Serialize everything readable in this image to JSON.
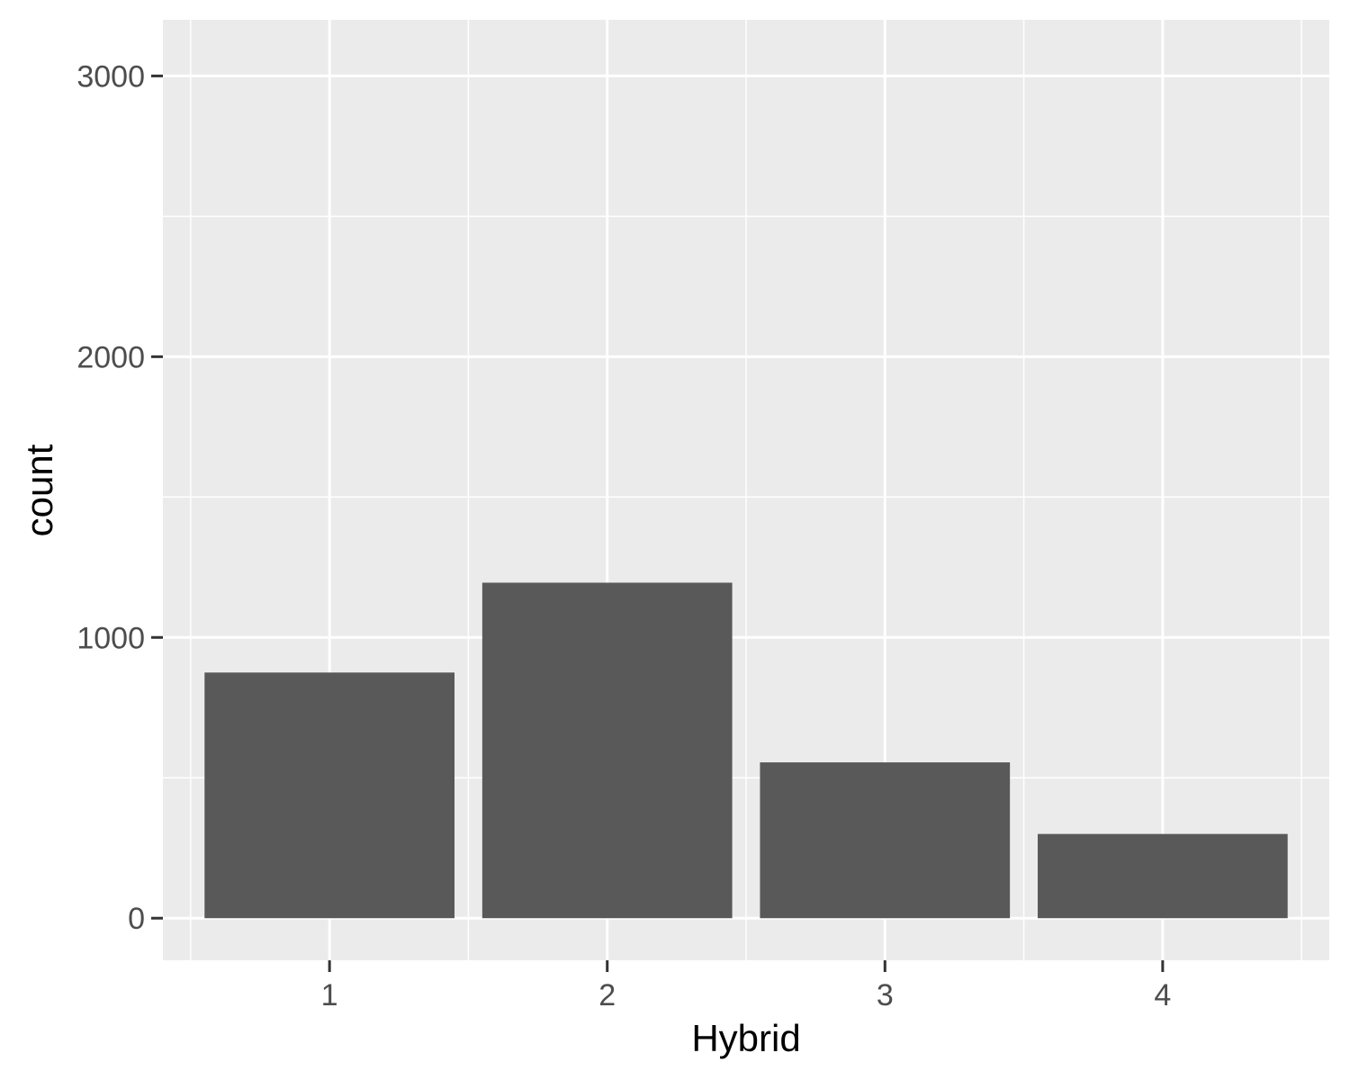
{
  "chart_data": {
    "type": "bar",
    "title": "",
    "xlabel": "Hybrid",
    "ylabel": "count",
    "categories": [
      "1",
      "2",
      "3",
      "4"
    ],
    "values": [
      875,
      1195,
      555,
      300
    ],
    "ylim": [
      -150,
      3200
    ],
    "yticks": [
      0,
      1000,
      2000,
      3000
    ],
    "y_tick_labels": [
      "0",
      "1000",
      "2000",
      "3000"
    ],
    "y_minor_ticks": [
      500,
      1500,
      2500
    ],
    "grid": true,
    "legend": "none",
    "colors": {
      "bar": "#595959",
      "panel": "#ebebeb",
      "grid": "#ffffff",
      "tick": "#333333"
    }
  }
}
